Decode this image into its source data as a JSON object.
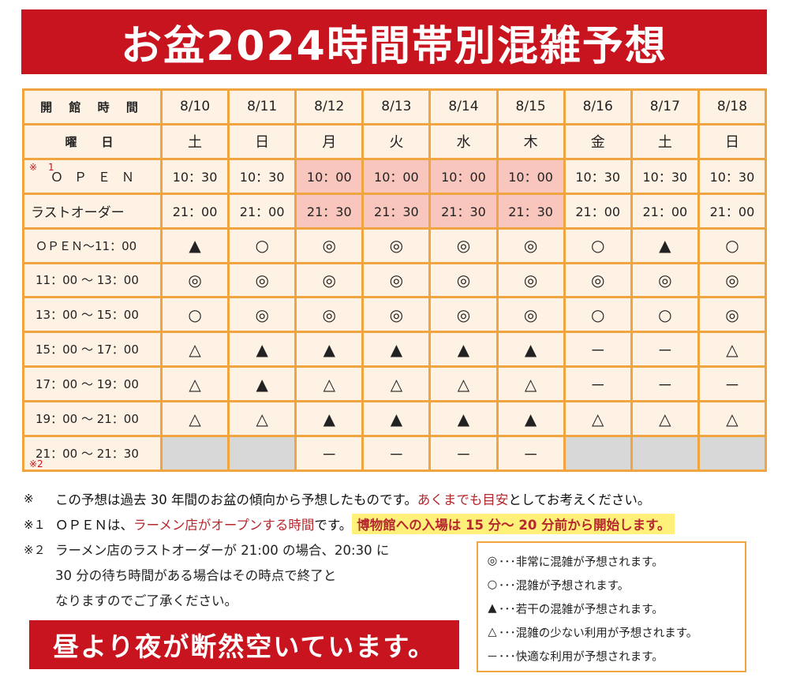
{
  "title": "お盆2024時間帯別混雑予想",
  "table": {
    "header_label": "開 館 時 間",
    "dow_label": "曜　日",
    "dates": [
      "8/10",
      "8/11",
      "8/12",
      "8/13",
      "8/14",
      "8/15",
      "8/16",
      "8/17",
      "8/18"
    ],
    "dows": [
      "土",
      "日",
      "月",
      "火",
      "水",
      "木",
      "金",
      "土",
      "日"
    ],
    "open_label": "ＯＰＥＮ",
    "open_note": "※1",
    "open_times": [
      "10：30",
      "10：30",
      "10：00",
      "10：00",
      "10：00",
      "10：00",
      "10：30",
      "10：30",
      "10：30"
    ],
    "last_label": "ラストオーダー",
    "last_times": [
      "21：00",
      "21：00",
      "21：30",
      "21：30",
      "21：30",
      "21：30",
      "21：00",
      "21：00",
      "21：00"
    ],
    "slots": [
      {
        "label": "ＯＰＥＮ～11：00",
        "values": [
          "▲",
          "○",
          "◎",
          "◎",
          "◎",
          "◎",
          "○",
          "▲",
          "○"
        ]
      },
      {
        "label": "11：00 ～ 13：00",
        "values": [
          "◎",
          "◎",
          "◎",
          "◎",
          "◎",
          "◎",
          "◎",
          "◎",
          "◎"
        ]
      },
      {
        "label": "13：00 ～ 15：00",
        "values": [
          "○",
          "◎",
          "◎",
          "◎",
          "◎",
          "◎",
          "○",
          "○",
          "◎"
        ]
      },
      {
        "label": "15：00 ～ 17：00",
        "values": [
          "△",
          "▲",
          "▲",
          "▲",
          "▲",
          "▲",
          "－",
          "－",
          "△"
        ]
      },
      {
        "label": "17：00 ～ 19：00",
        "values": [
          "△",
          "▲",
          "△",
          "△",
          "△",
          "△",
          "－",
          "－",
          "－"
        ]
      },
      {
        "label": "19：00 ～ 21：00",
        "values": [
          "△",
          "△",
          "▲",
          "▲",
          "▲",
          "▲",
          "△",
          "△",
          "△"
        ]
      },
      {
        "label": "21：00 ～ 21：30",
        "values": [
          "",
          "",
          "－",
          "－",
          "－",
          "－",
          "",
          "",
          ""
        ]
      }
    ],
    "last_slot_note": "※2"
  },
  "notes": {
    "n1_mark": "※",
    "n1_text": "この予想は過去 30 年間のお盆の傾向から予想したものです。",
    "n1_red": "あくまでも目安",
    "n1_tail": "としてお考えください。",
    "n2_mark": "※１",
    "n2_text": "ＯＰＥＮは、",
    "n2_red": "ラーメン店がオープンする時間",
    "n2_tail": "です。",
    "n2_hl": "博物館への入場は 15 分～ 20 分前から開始します。",
    "n3_mark": "※２",
    "n3_line1": "ラーメン店のラストオーダーが 21:00 の場合、20:30 に",
    "n3_line2": "30 分の待ち時間がある場合はその時点で終了と",
    "n3_line3": "なりますのでご了承ください。"
  },
  "banner": "昼より夜が断然空いています。",
  "legend": [
    {
      "sym": "◎",
      "text": "･･･非常に混雑が予想されます。"
    },
    {
      "sym": "○",
      "text": "･･･混雑が予想されます。"
    },
    {
      "sym": "▲",
      "text": "･･･若干の混雑が予想されます。"
    },
    {
      "sym": "△",
      "text": "･･･混雑の少ない利用が予想されます。"
    },
    {
      "sym": "－",
      "text": "･･･快適な利用が予想されます。"
    }
  ]
}
